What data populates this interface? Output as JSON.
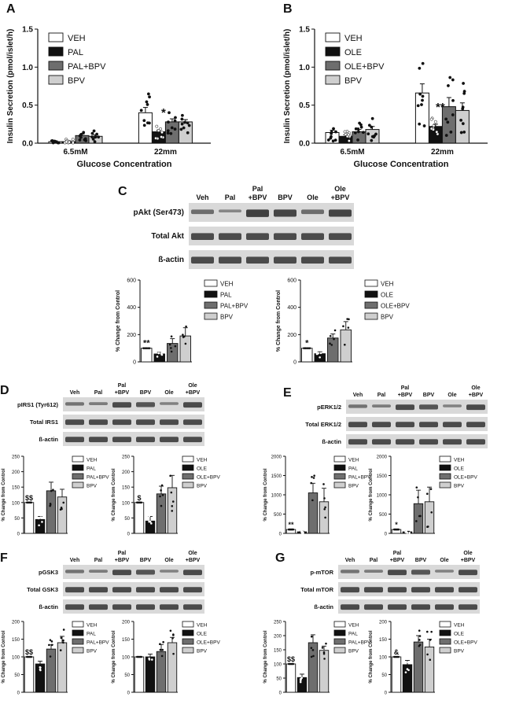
{
  "colors": {
    "veh": "#ffffff",
    "pal": "#111111",
    "pal_bpv": "#6e6e6e",
    "bpv": "#cfcfcf",
    "blot_bg": "#d9d9d9",
    "band": "#333333"
  },
  "panels": {
    "A": {
      "letter": "A",
      "ylabel": "Insulin Secretion (pmol/islet/h)",
      "xlabel": "Glucose Concentration",
      "legend": [
        "VEH",
        "PAL",
        "PAL+BPV",
        "BPV"
      ],
      "stars": [
        "*"
      ]
    },
    "B": {
      "letter": "B",
      "ylabel": "Insulin Secretion (pmol/islet/h)",
      "xlabel": "Glucose Concentration",
      "legend": [
        "VEH",
        "OLE",
        "OLE+BPV",
        "BPV"
      ],
      "stars": [
        "**"
      ]
    },
    "C": {
      "letter": "C",
      "lanes": [
        "Veh",
        "Pal",
        "Pal\n+BPV",
        "BPV",
        "Ole",
        "Ole\n+BPV"
      ],
      "rows": [
        "pAkt (Ser473)",
        "Total Akt",
        "ß-actin"
      ],
      "ylabel": "% Change from Control",
      "left": {
        "legend": [
          "VEH",
          "PAL",
          "PAL+BPV",
          "BPV"
        ],
        "annot": [
          "**",
          "",
          "",
          ""
        ]
      },
      "right": {
        "legend": [
          "VEH",
          "OLE",
          "OLE+BPV",
          "BPV"
        ],
        "annot": [
          "*",
          "",
          "",
          ""
        ]
      }
    },
    "D": {
      "letter": "D",
      "lanes": [
        "Veh",
        "Pal",
        "Pal\n+BPV",
        "BPV",
        "Ole",
        "Ole\n+BPV"
      ],
      "rows": [
        "pIRS1 (Tyr612)",
        "Total IRS1",
        "ß-actin"
      ],
      "ylabel": "% Change from Control",
      "left": {
        "legend": [
          "VEH",
          "PAL",
          "PAL+BPV",
          "BPV"
        ],
        "annot": [
          "$$",
          "",
          "",
          ""
        ]
      },
      "right": {
        "legend": [
          "VEH",
          "OLE",
          "OLE+BPV",
          "BPV"
        ],
        "annot": [
          "$",
          "",
          "",
          ""
        ]
      }
    },
    "E": {
      "letter": "E",
      "lanes": [
        "Veh",
        "Pal",
        "Pal\n+BPV",
        "BPV",
        "Ole",
        "Ole\n+BPV"
      ],
      "rows": [
        "pERK1/2",
        "Total ERK1/2",
        "ß-actin"
      ],
      "ylabel": "% Change from Control",
      "left": {
        "legend": [
          "VEH",
          "PAL",
          "PAL+BPV",
          "BPV"
        ],
        "annot": [
          "**",
          "",
          "",
          ""
        ]
      },
      "right": {
        "legend": [
          "VEH",
          "OLE",
          "OLE+BPV",
          "BPV"
        ],
        "annot": [
          "*",
          "",
          "",
          ""
        ]
      }
    },
    "F": {
      "letter": "F",
      "lanes": [
        "Veh",
        "Pal",
        "Pal\n+BPV",
        "BPV",
        "Ole",
        "Ole\n+BPV"
      ],
      "rows": [
        "pGSK3",
        "Total GSK3",
        "ß-actin"
      ],
      "ylabel": "% Change from Control",
      "left": {
        "legend": [
          "VEH",
          "PAL",
          "PAL+BPV",
          "BPV"
        ],
        "annot": [
          "$$",
          "",
          "",
          ""
        ]
      },
      "right": {
        "legend": [
          "VEH",
          "OLE",
          "OLE+BPV",
          "BPV"
        ],
        "annot": [
          "",
          "",
          "",
          ""
        ]
      }
    },
    "G": {
      "letter": "G",
      "lanes": [
        "Veh",
        "Pal",
        "Pal\n+BPV",
        "BPV",
        "Ole",
        "Ole\n+BPV"
      ],
      "rows": [
        "p-mTOR",
        "Total mTOR",
        "ß-actin"
      ],
      "ylabel": "% Change from Control",
      "left": {
        "legend": [
          "VEH",
          "PAL",
          "PAL+BPV",
          "BPV"
        ],
        "annot": [
          "$$",
          "",
          "",
          ""
        ]
      },
      "right": {
        "legend": [
          "VEH",
          "OLE",
          "OLE+BPV",
          "BPV"
        ],
        "annot": [
          "&",
          "",
          "",
          ""
        ]
      }
    }
  },
  "chart_data": [
    {
      "id": "A",
      "type": "bar",
      "categories": [
        "6.5mM",
        "22mm"
      ],
      "ylim": [
        0,
        1.5
      ],
      "yticks": [
        "0.0",
        "0.5",
        "1.0",
        "1.5"
      ],
      "series": [
        {
          "name": "VEH",
          "values": [
            0.02,
            0.4
          ],
          "sem": [
            0.01,
            0.07
          ]
        },
        {
          "name": "PAL",
          "values": [
            0.02,
            0.15
          ],
          "sem": [
            0.01,
            0.02
          ]
        },
        {
          "name": "PAL+BPV",
          "values": [
            0.1,
            0.28
          ],
          "sem": [
            0.02,
            0.04
          ]
        },
        {
          "name": "BPV",
          "values": [
            0.09,
            0.28
          ],
          "sem": [
            0.02,
            0.03
          ]
        }
      ]
    },
    {
      "id": "B",
      "type": "bar",
      "categories": [
        "6.5mM",
        "22mm"
      ],
      "ylim": [
        0,
        1.5
      ],
      "yticks": [
        "0.0",
        "0.5",
        "1.0",
        "1.5"
      ],
      "series": [
        {
          "name": "OLE",
          "values": [
            0.14,
            0.66
          ],
          "sem": [
            0.03,
            0.12
          ]
        },
        {
          "name": "VEH",
          "values": [
            0.09,
            0.22
          ],
          "sem": [
            0.02,
            0.03
          ]
        },
        {
          "name": "OLE+BPV",
          "values": [
            0.15,
            0.48
          ],
          "sem": [
            0.03,
            0.12
          ]
        },
        {
          "name": "BPV",
          "values": [
            0.18,
            0.43
          ],
          "sem": [
            0.04,
            0.1
          ]
        }
      ]
    },
    {
      "id": "C-left",
      "type": "bar",
      "categories": [
        "VEH",
        "PAL",
        "PAL+BPV",
        "BPV"
      ],
      "values": [
        100,
        58,
        135,
        190
      ],
      "sem": [
        0,
        12,
        35,
        60
      ],
      "ylim": [
        0,
        600
      ],
      "yticks": [
        "0",
        "200",
        "400",
        "600"
      ]
    },
    {
      "id": "C-right",
      "type": "bar",
      "categories": [
        "VEH",
        "OLE",
        "OLE+BPV",
        "BPV"
      ],
      "values": [
        100,
        60,
        175,
        235
      ],
      "sem": [
        0,
        14,
        30,
        60
      ],
      "ylim": [
        0,
        600
      ],
      "yticks": [
        "0",
        "200",
        "400",
        "600"
      ]
    },
    {
      "id": "D-left",
      "type": "bar",
      "categories": [
        "VEH",
        "PAL",
        "PAL+BPV",
        "BPV"
      ],
      "values": [
        100,
        45,
        138,
        118
      ],
      "sem": [
        0,
        10,
        28,
        25
      ],
      "ylim": [
        0,
        250
      ],
      "yticks": [
        "0",
        "50",
        "100",
        "150",
        "200",
        "250"
      ]
    },
    {
      "id": "D-right",
      "type": "bar",
      "categories": [
        "VEH",
        "OLE",
        "OLE+BPV",
        "BPV"
      ],
      "values": [
        100,
        40,
        128,
        148
      ],
      "sem": [
        0,
        15,
        25,
        40
      ],
      "ylim": [
        0,
        250
      ],
      "yticks": [
        "0",
        "50",
        "100",
        "150",
        "200",
        "250"
      ]
    },
    {
      "id": "E-left",
      "type": "bar",
      "categories": [
        "VEH",
        "PAL",
        "PAL+BPV",
        "BPV"
      ],
      "values": [
        100,
        40,
        1050,
        820
      ],
      "sem": [
        0,
        15,
        250,
        350
      ],
      "ylim": [
        0,
        2000
      ],
      "yticks": [
        "0",
        "500",
        "1000",
        "1500",
        "2000"
      ]
    },
    {
      "id": "E-right",
      "type": "bar",
      "categories": [
        "VEH",
        "OLE",
        "OLE+BPV",
        "BPV"
      ],
      "values": [
        100,
        40,
        770,
        820
      ],
      "sem": [
        0,
        15,
        350,
        380
      ],
      "ylim": [
        0,
        2000
      ],
      "yticks": [
        "0",
        "500",
        "1000",
        "1500",
        "2000"
      ]
    },
    {
      "id": "F-left",
      "type": "bar",
      "categories": [
        "VEH",
        "PAL",
        "PAL+BPV",
        "BPV"
      ],
      "values": [
        100,
        80,
        122,
        140
      ],
      "sem": [
        0,
        8,
        12,
        18
      ],
      "ylim": [
        0,
        200
      ],
      "yticks": [
        "0",
        "50",
        "100",
        "150",
        "200"
      ]
    },
    {
      "id": "F-right",
      "type": "bar",
      "categories": [
        "VEH",
        "OLE",
        "OLE+BPV",
        "BPV"
      ],
      "values": [
        100,
        100,
        115,
        140
      ],
      "sem": [
        0,
        8,
        20,
        15
      ],
      "ylim": [
        0,
        200
      ],
      "yticks": [
        "0",
        "50",
        "100",
        "150",
        "200"
      ]
    },
    {
      "id": "G-left",
      "type": "bar",
      "categories": [
        "VEH",
        "PAL",
        "PAL+BPV",
        "BPV"
      ],
      "values": [
        100,
        52,
        175,
        148
      ],
      "sem": [
        0,
        12,
        28,
        15
      ],
      "ylim": [
        0,
        250
      ],
      "yticks": [
        "0",
        "50",
        "100",
        "150",
        "200",
        "250"
      ]
    },
    {
      "id": "G-right",
      "type": "bar",
      "categories": [
        "VEH",
        "OLE",
        "OLE+BPV",
        "BPV"
      ],
      "values": [
        100,
        78,
        142,
        128
      ],
      "sem": [
        0,
        12,
        18,
        22
      ],
      "ylim": [
        0,
        200
      ],
      "yticks": [
        "0",
        "50",
        "100",
        "150",
        "200"
      ]
    }
  ]
}
